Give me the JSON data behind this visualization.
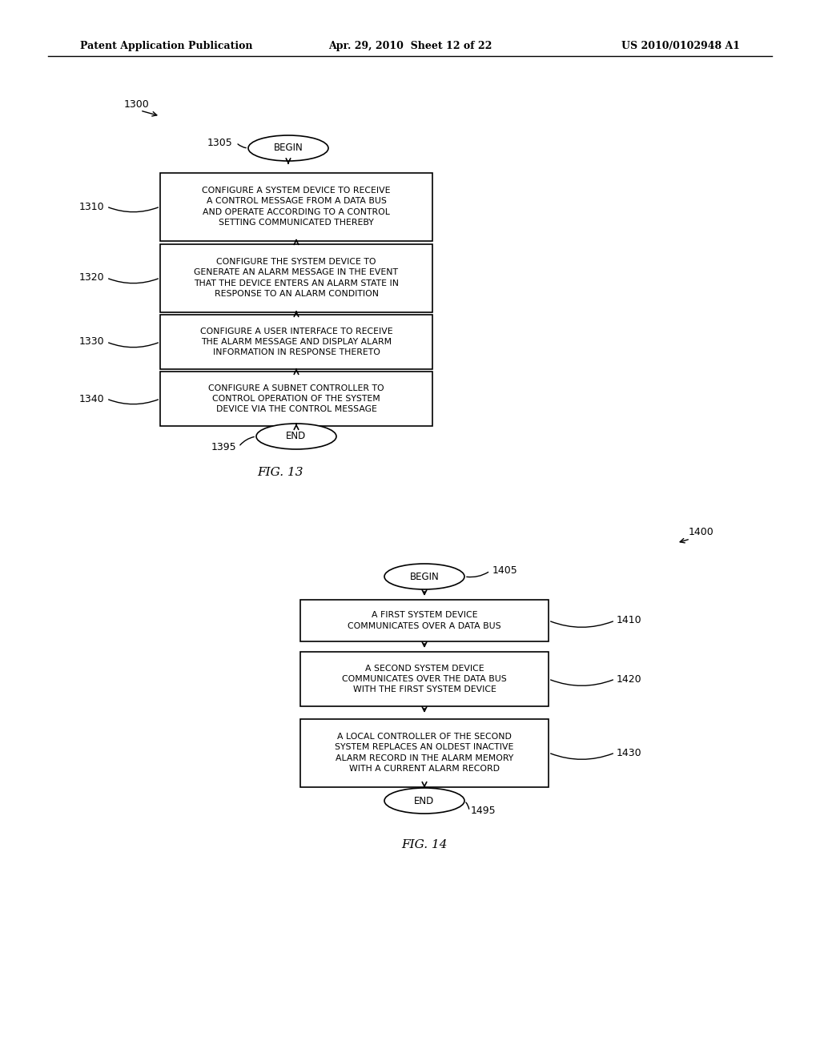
{
  "background_color": "#ffffff",
  "header_left": "Patent Application Publication",
  "header_mid": "Apr. 29, 2010  Sheet 12 of 22",
  "header_right": "US 2010/0102948 A1",
  "fig13": {
    "label": "1300",
    "begin_label": "1305",
    "begin_text": "BEGIN",
    "boxes": [
      {
        "id": "1310",
        "text": "CONFIGURE A SYSTEM DEVICE TO RECEIVE\nA CONTROL MESSAGE FROM A DATA BUS\nAND OPERATE ACCORDING TO A CONTROL\nSETTING COMMUNICATED THEREBY"
      },
      {
        "id": "1320",
        "text": "CONFIGURE THE SYSTEM DEVICE TO\nGENERATE AN ALARM MESSAGE IN THE EVENT\nTHAT THE DEVICE ENTERS AN ALARM STATE IN\nRESPONSE TO AN ALARM CONDITION"
      },
      {
        "id": "1330",
        "text": "CONFIGURE A USER INTERFACE TO RECEIVE\nTHE ALARM MESSAGE AND DISPLAY ALARM\nINFORMATION IN RESPONSE THERETO"
      },
      {
        "id": "1340",
        "text": "CONFIGURE A SUBNET CONTROLLER TO\nCONTROL OPERATION OF THE SYSTEM\nDEVICE VIA THE CONTROL MESSAGE"
      }
    ],
    "end_label": "1395",
    "end_text": "END",
    "fig_label": "FIG. 13"
  },
  "fig14": {
    "label": "1400",
    "begin_label": "1405",
    "begin_text": "BEGIN",
    "boxes": [
      {
        "id": "1410",
        "text": "A FIRST SYSTEM DEVICE\nCOMMUNICATES OVER A DATA BUS"
      },
      {
        "id": "1420",
        "text": "A SECOND SYSTEM DEVICE\nCOMMUNICATES OVER THE DATA BUS\nWITH THE FIRST SYSTEM DEVICE"
      },
      {
        "id": "1430",
        "text": "A LOCAL CONTROLLER OF THE SECOND\nSYSTEM REPLACES AN OLDEST INACTIVE\nALARM RECORD IN THE ALARM MEMORY\nWITH A CURRENT ALARM RECORD"
      }
    ],
    "end_label": "1495",
    "end_text": "END",
    "fig_label": "FIG. 14"
  }
}
